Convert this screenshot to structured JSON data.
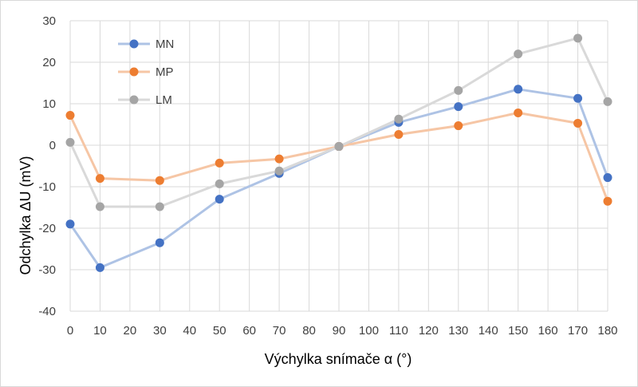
{
  "chart_data": {
    "type": "line",
    "xlabel": "Výchylka snímače α (°)",
    "ylabel": "Odchylka ΔU (mV)",
    "ylim": [
      -40,
      30
    ],
    "yticks": [
      "30",
      "20",
      "10",
      "0",
      "-10",
      "-20",
      "-30",
      "-40"
    ],
    "xticks": [
      "0",
      "10",
      "20",
      "30",
      "40",
      "50",
      "60",
      "70",
      "80",
      "90",
      "100",
      "110",
      "120",
      "130",
      "140",
      "150",
      "160",
      "170",
      "180"
    ],
    "grid": "vertical-and-horizontal",
    "legend_position": "top-left",
    "series": [
      {
        "name": "MN",
        "color": "#4472c4",
        "line_color": "#aec3e5",
        "x": [
          0,
          10,
          30,
          50,
          70,
          90,
          110,
          130,
          150,
          170,
          180
        ],
        "values": [
          -19,
          -29.5,
          -23.5,
          -13,
          -6.8,
          -0.3,
          5.5,
          9.3,
          13.5,
          11.3,
          -7.8
        ]
      },
      {
        "name": "MP",
        "color": "#ed7d31",
        "line_color": "#f6c6a5",
        "x": [
          0,
          10,
          30,
          50,
          70,
          90,
          110,
          130,
          150,
          170,
          180
        ],
        "values": [
          7.2,
          -8,
          -8.5,
          -4.3,
          -3.3,
          -0.3,
          2.6,
          4.7,
          7.8,
          5.3,
          -13.5
        ]
      },
      {
        "name": "LM",
        "color": "#a5a5a5",
        "line_color": "#d9d9d9",
        "x": [
          0,
          10,
          30,
          50,
          70,
          90,
          110,
          130,
          150,
          170,
          180
        ],
        "values": [
          0.7,
          -14.8,
          -14.8,
          -9.3,
          -6.2,
          -0.3,
          6.3,
          13.2,
          22,
          25.8,
          10.5
        ]
      }
    ]
  }
}
